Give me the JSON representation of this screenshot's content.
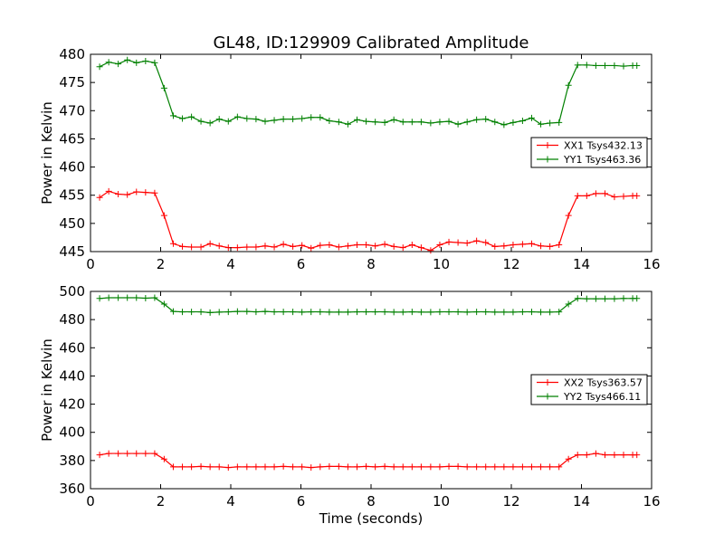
{
  "chart_data": [
    {
      "type": "line",
      "title": "GL48, ID:129909 Calibrated Amplitude",
      "xlabel": "",
      "ylabel": "Power in Kelvin",
      "xlim": [
        0,
        16
      ],
      "ylim": [
        445,
        480
      ],
      "xticks": [
        0,
        2,
        4,
        6,
        8,
        10,
        12,
        14,
        16
      ],
      "yticks": [
        445,
        450,
        455,
        460,
        465,
        470,
        475,
        480
      ],
      "grid": false,
      "legend_position": "center-right",
      "x": [
        0.26,
        0.52,
        0.79,
        1.05,
        1.31,
        1.57,
        1.83,
        2.1,
        2.36,
        2.62,
        2.88,
        3.15,
        3.41,
        3.67,
        3.93,
        4.19,
        4.46,
        4.72,
        4.98,
        5.24,
        5.5,
        5.77,
        6.03,
        6.29,
        6.55,
        6.81,
        7.08,
        7.34,
        7.6,
        7.86,
        8.12,
        8.39,
        8.65,
        8.91,
        9.17,
        9.43,
        9.7,
        9.96,
        10.22,
        10.48,
        10.74,
        11.01,
        11.27,
        11.53,
        11.79,
        12.05,
        12.32,
        12.58,
        12.84,
        13.1,
        13.36,
        13.63,
        13.89,
        14.15,
        14.41,
        14.67,
        14.94,
        15.2,
        15.46,
        15.58
      ],
      "series": [
        {
          "name": "XX1 Tsys432.13",
          "color": "#ff0000",
          "values": [
            454.6,
            455.7,
            455.2,
            455.1,
            455.6,
            455.5,
            455.4,
            451.4,
            446.4,
            445.9,
            445.8,
            445.8,
            446.4,
            446.0,
            445.7,
            445.7,
            445.8,
            445.8,
            446.0,
            445.8,
            446.3,
            445.9,
            446.1,
            445.6,
            446.1,
            446.2,
            445.8,
            446.0,
            446.2,
            446.2,
            446.0,
            446.3,
            445.9,
            445.7,
            446.2,
            445.7,
            445.2,
            446.2,
            446.7,
            446.6,
            446.5,
            446.9,
            446.6,
            445.9,
            446.0,
            446.2,
            446.3,
            446.4,
            446.0,
            445.9,
            446.2,
            451.4,
            454.9,
            454.9,
            455.3,
            455.3,
            454.7,
            454.8,
            454.9,
            454.9
          ]
        },
        {
          "name": "YY1 Tsys463.36",
          "color": "#008000",
          "values": [
            477.8,
            478.6,
            478.3,
            479.0,
            478.5,
            478.8,
            478.5,
            474.0,
            469.1,
            468.6,
            468.9,
            468.1,
            467.8,
            468.5,
            468.1,
            468.9,
            468.6,
            468.5,
            468.1,
            468.3,
            468.5,
            468.5,
            468.6,
            468.8,
            468.8,
            468.2,
            468.0,
            467.6,
            468.4,
            468.1,
            468.0,
            467.9,
            468.4,
            468.0,
            468.0,
            468.0,
            467.8,
            468.0,
            468.1,
            467.6,
            468.0,
            468.4,
            468.5,
            468.0,
            467.5,
            467.9,
            468.2,
            468.7,
            467.6,
            467.8,
            467.9,
            474.5,
            478.1,
            478.1,
            478.0,
            478.0,
            478.0,
            477.9,
            478.0,
            478.0
          ]
        }
      ]
    },
    {
      "type": "line",
      "title": "",
      "xlabel": "Time (seconds)",
      "ylabel": "Power in Kelvin",
      "xlim": [
        0,
        16
      ],
      "ylim": [
        360,
        500
      ],
      "xticks": [
        0,
        2,
        4,
        6,
        8,
        10,
        12,
        14,
        16
      ],
      "yticks": [
        360,
        380,
        400,
        420,
        440,
        460,
        480,
        500
      ],
      "grid": false,
      "legend_position": "center-right",
      "x": [
        0.26,
        0.52,
        0.79,
        1.05,
        1.31,
        1.57,
        1.83,
        2.1,
        2.36,
        2.62,
        2.88,
        3.15,
        3.41,
        3.67,
        3.93,
        4.19,
        4.46,
        4.72,
        4.98,
        5.24,
        5.5,
        5.77,
        6.03,
        6.29,
        6.55,
        6.81,
        7.08,
        7.34,
        7.6,
        7.86,
        8.12,
        8.39,
        8.65,
        8.91,
        9.17,
        9.43,
        9.7,
        9.96,
        10.22,
        10.48,
        10.74,
        11.01,
        11.27,
        11.53,
        11.79,
        12.05,
        12.32,
        12.58,
        12.84,
        13.1,
        13.36,
        13.63,
        13.89,
        14.15,
        14.41,
        14.67,
        14.94,
        15.2,
        15.46,
        15.58
      ],
      "series": [
        {
          "name": "XX2 Tsys363.57",
          "color": "#ff0000",
          "values": [
            384,
            385,
            385,
            385,
            385,
            385,
            385,
            381,
            375.5,
            375.5,
            375.5,
            375.8,
            375.5,
            375.5,
            375,
            375.5,
            375.5,
            375.5,
            375.5,
            375.5,
            375.8,
            375.5,
            375.5,
            375,
            375.5,
            375.8,
            375.8,
            375.5,
            375.5,
            375.8,
            375.5,
            375.8,
            375.5,
            375.5,
            375.5,
            375.5,
            375.5,
            375.5,
            375.8,
            375.8,
            375.5,
            375.5,
            375.5,
            375.5,
            375.5,
            375.5,
            375.5,
            375.5,
            375.5,
            375.5,
            375.5,
            381,
            384,
            384,
            385,
            384,
            384,
            384,
            384,
            384
          ]
        },
        {
          "name": "YY2 Tsys466.11",
          "color": "#008000",
          "values": [
            495,
            495.5,
            495.5,
            495.5,
            495.5,
            495.2,
            495.5,
            491,
            485.8,
            485.5,
            485.5,
            485.5,
            485,
            485.3,
            485.5,
            485.8,
            485.8,
            485.5,
            485.8,
            485.5,
            485.5,
            485.5,
            485.3,
            485.5,
            485.5,
            485.3,
            485.3,
            485.3,
            485.5,
            485.5,
            485.5,
            485.5,
            485.3,
            485.3,
            485.5,
            485.3,
            485.3,
            485.5,
            485.5,
            485.5,
            485.3,
            485.5,
            485.5,
            485.3,
            485.3,
            485.3,
            485.5,
            485.5,
            485.3,
            485.3,
            485.5,
            491,
            495,
            494.8,
            494.8,
            494.8,
            494.8,
            495,
            495,
            495
          ]
        }
      ]
    }
  ]
}
